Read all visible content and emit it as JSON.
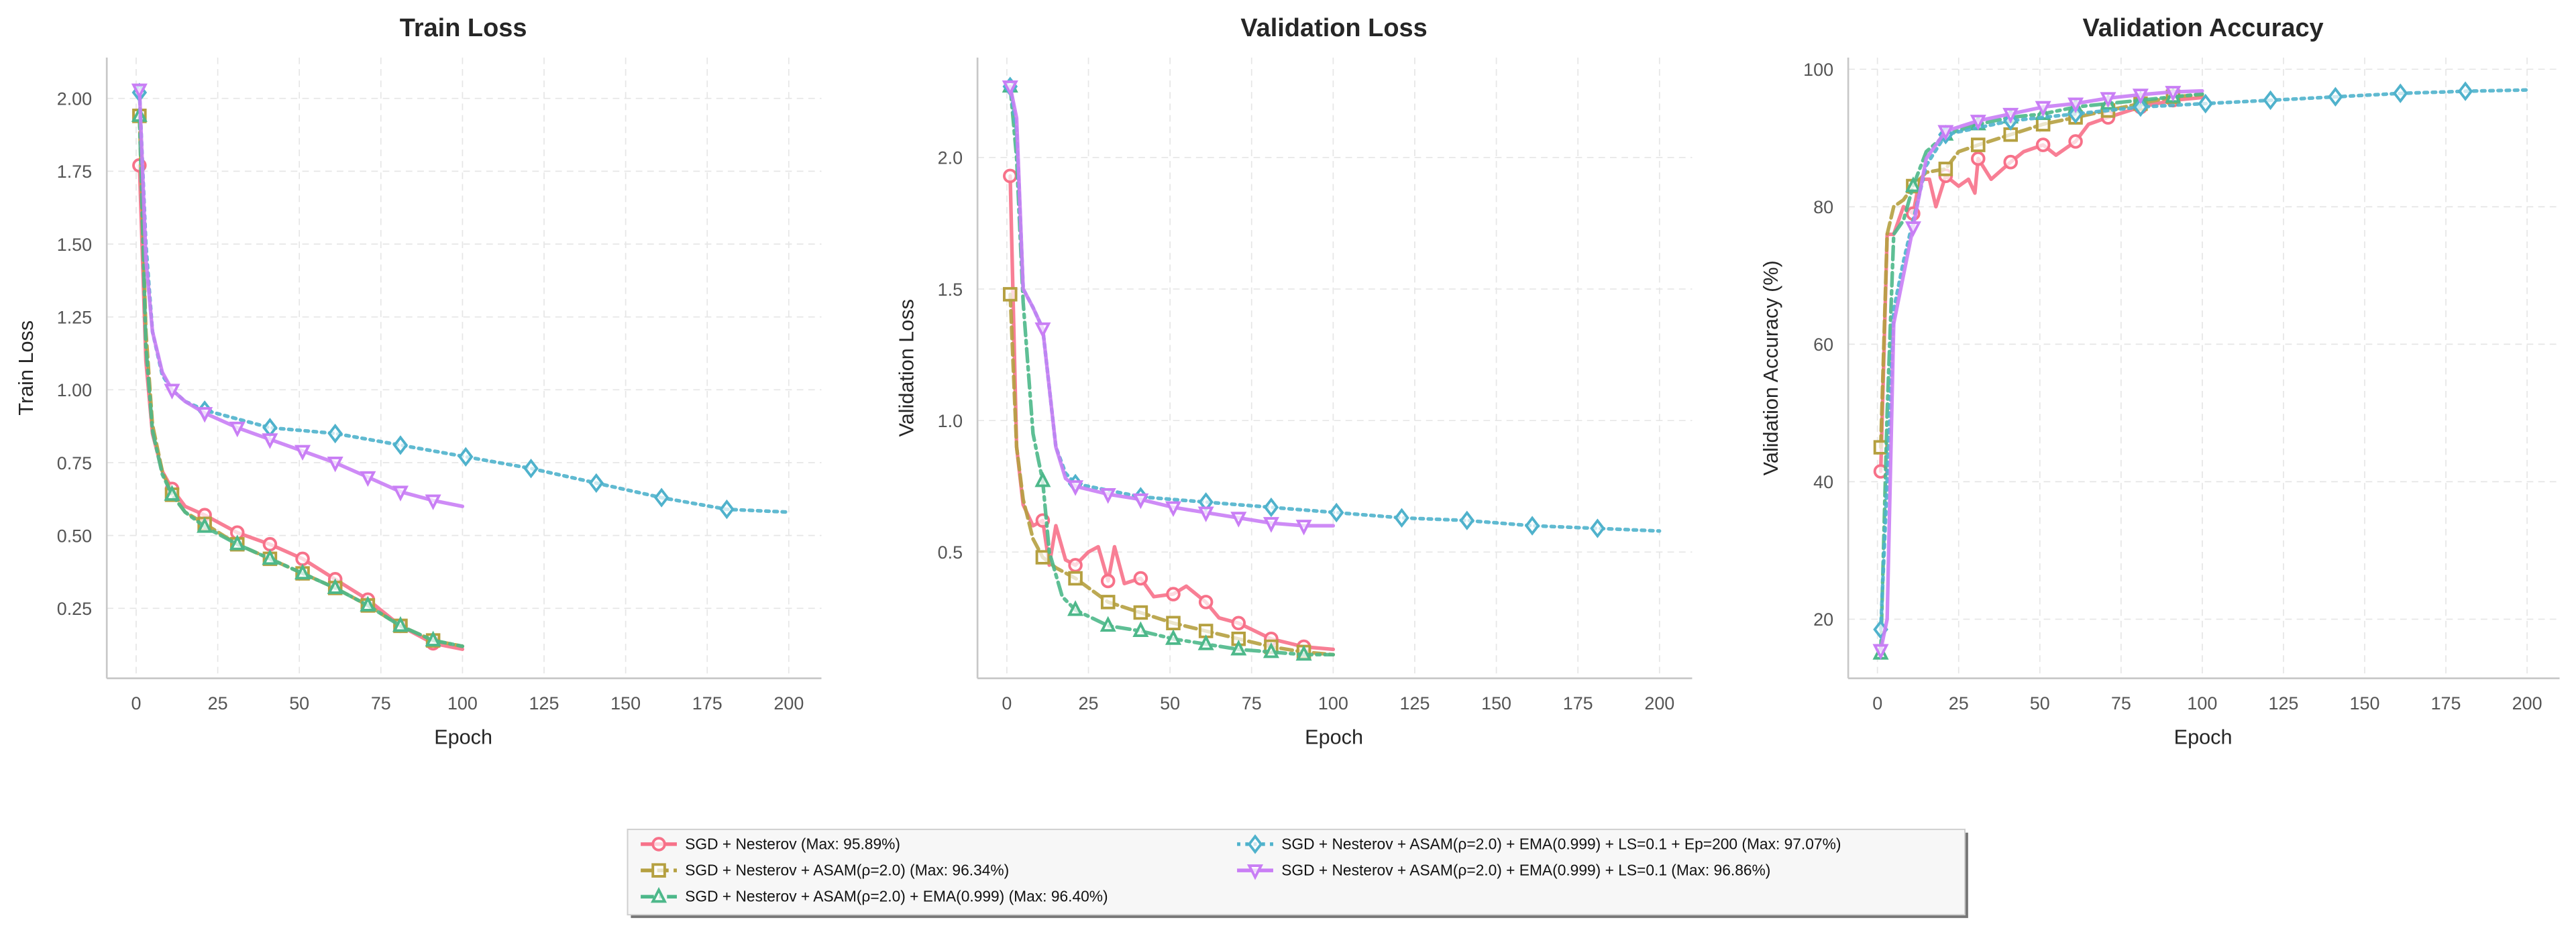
{
  "colors": {
    "sgd": "#f77189",
    "asam": "#b5a040",
    "ema": "#4db88a",
    "ep200": "#4fb2cc",
    "ls": "#c97ef5"
  },
  "legend": {
    "location": "bottom-center",
    "entries": [
      "SGD + Nesterov (Max: 95.89%)",
      "SGD + Nesterov + ASAM(ρ=2.0) (Max: 96.34%)",
      "SGD + Nesterov + ASAM(ρ=2.0) + EMA(0.999) (Max: 96.40%)",
      "SGD + Nesterov + ASAM(ρ=2.0) + EMA(0.999) + LS=0.1 + Ep=200 (Max: 97.07%)",
      "SGD + Nesterov + ASAM(ρ=2.0) + EMA(0.999) + LS=0.1 (Max: 96.86%)"
    ]
  },
  "chart_data": [
    {
      "type": "line",
      "title": "Train Loss",
      "xlabel": "Epoch",
      "ylabel": "Train Loss",
      "xlim": [
        -9,
        210
      ],
      "ylim": [
        0.01,
        2.14
      ],
      "grid": true,
      "xticks": [
        0,
        25,
        50,
        75,
        100,
        125,
        150,
        175,
        200
      ],
      "yticks": [
        0.25,
        0.5,
        0.75,
        1.0,
        1.25,
        1.5,
        1.75,
        2.0
      ],
      "ytick_labels": [
        "0.25",
        "0.50",
        "0.75",
        "1.00",
        "1.25",
        "1.50",
        "1.75",
        "2.00"
      ],
      "series": [
        {
          "name": "SGD + Nesterov (Max: 95.89%)",
          "key": "sgd",
          "style": "solid",
          "marker": "circle",
          "x": [
            1,
            3,
            5,
            8,
            11,
            15,
            21,
            31,
            41,
            51,
            61,
            71,
            81,
            91,
            100
          ],
          "y": [
            1.77,
            1.1,
            0.85,
            0.72,
            0.66,
            0.6,
            0.57,
            0.51,
            0.47,
            0.42,
            0.35,
            0.28,
            0.19,
            0.13,
            0.11
          ]
        },
        {
          "name": "SGD + Nesterov + ASAM(ρ=2.0) (Max: 96.34%)",
          "key": "asam",
          "style": "dashed",
          "marker": "square",
          "x": [
            1,
            3,
            5,
            8,
            11,
            15,
            21,
            31,
            41,
            51,
            61,
            71,
            81,
            91,
            100
          ],
          "y": [
            1.94,
            1.2,
            0.88,
            0.72,
            0.64,
            0.58,
            0.54,
            0.47,
            0.42,
            0.37,
            0.32,
            0.26,
            0.19,
            0.14,
            0.12
          ]
        },
        {
          "name": "SGD + Nesterov + ASAM(ρ=2.0) + EMA(0.999) (Max: 96.40%)",
          "key": "ema",
          "style": "dashdot",
          "marker": "triangle-up",
          "x": [
            1,
            3,
            5,
            8,
            11,
            15,
            21,
            31,
            41,
            51,
            61,
            71,
            81,
            91,
            100
          ],
          "y": [
            1.94,
            1.15,
            0.86,
            0.71,
            0.64,
            0.58,
            0.53,
            0.47,
            0.42,
            0.37,
            0.32,
            0.26,
            0.19,
            0.14,
            0.12
          ]
        },
        {
          "name": "SGD + Nesterov + ASAM(ρ=2.0) + EMA(0.999) + LS=0.1 + Ep=200 (Max: 97.07%)",
          "key": "ep200",
          "style": "dotted",
          "marker": "diamond",
          "x": [
            1,
            3,
            5,
            8,
            11,
            15,
            21,
            41,
            61,
            81,
            101,
            121,
            141,
            161,
            181,
            200
          ],
          "y": [
            2.02,
            1.5,
            1.2,
            1.05,
            1.0,
            0.96,
            0.93,
            0.87,
            0.85,
            0.81,
            0.77,
            0.73,
            0.68,
            0.63,
            0.59,
            0.58
          ]
        },
        {
          "name": "SGD + Nesterov + ASAM(ρ=2.0) + EMA(0.999) + LS=0.1 (Max: 96.86%)",
          "key": "ls",
          "style": "solid",
          "marker": "triangle-down",
          "x": [
            1,
            3,
            5,
            8,
            11,
            15,
            21,
            31,
            41,
            51,
            61,
            71,
            81,
            91,
            100
          ],
          "y": [
            2.03,
            1.45,
            1.2,
            1.06,
            1.0,
            0.96,
            0.92,
            0.87,
            0.83,
            0.79,
            0.75,
            0.7,
            0.65,
            0.62,
            0.6
          ]
        }
      ]
    },
    {
      "type": "line",
      "title": "Validation Loss",
      "xlabel": "Epoch",
      "ylabel": "Validation Loss",
      "xlim": [
        -9,
        210
      ],
      "ylim": [
        0.02,
        2.38
      ],
      "grid": true,
      "xticks": [
        0,
        25,
        50,
        75,
        100,
        125,
        150,
        175,
        200
      ],
      "yticks": [
        0.5,
        1.0,
        1.5,
        2.0
      ],
      "ytick_labels": [
        "0.5",
        "1.0",
        "1.5",
        "2.0"
      ],
      "series": [
        {
          "name": "SGD + Nesterov (Max: 95.89%)",
          "key": "sgd",
          "style": "solid",
          "marker": "circle",
          "x": [
            1,
            3,
            5,
            8,
            11,
            13,
            15,
            18,
            21,
            25,
            28,
            31,
            33,
            36,
            41,
            45,
            51,
            55,
            61,
            65,
            71,
            81,
            91,
            100
          ],
          "y": [
            1.93,
            0.9,
            0.68,
            0.6,
            0.62,
            0.45,
            0.6,
            0.47,
            0.45,
            0.5,
            0.52,
            0.39,
            0.52,
            0.38,
            0.4,
            0.33,
            0.34,
            0.37,
            0.31,
            0.25,
            0.23,
            0.17,
            0.14,
            0.13
          ]
        },
        {
          "name": "SGD + Nesterov + ASAM(ρ=2.0) (Max: 96.34%)",
          "key": "asam",
          "style": "dashed",
          "marker": "square",
          "x": [
            1,
            3,
            5,
            8,
            11,
            15,
            21,
            31,
            41,
            51,
            61,
            71,
            81,
            91,
            100
          ],
          "y": [
            1.48,
            0.9,
            0.7,
            0.55,
            0.48,
            0.44,
            0.4,
            0.31,
            0.27,
            0.23,
            0.2,
            0.17,
            0.14,
            0.12,
            0.11
          ]
        },
        {
          "name": "SGD + Nesterov + ASAM(ρ=2.0) + EMA(0.999) (Max: 96.40%)",
          "key": "ema",
          "style": "dashdot",
          "marker": "triangle-up",
          "x": [
            1,
            3,
            5,
            8,
            11,
            13,
            17,
            21,
            31,
            41,
            51,
            61,
            71,
            81,
            91,
            100
          ],
          "y": [
            2.27,
            2.0,
            1.45,
            0.95,
            0.77,
            0.5,
            0.33,
            0.28,
            0.22,
            0.2,
            0.17,
            0.15,
            0.13,
            0.12,
            0.11,
            0.11
          ]
        },
        {
          "name": "SGD + Nesterov + ASAM(ρ=2.0) + EMA(0.999) + LS=0.1 + Ep=200 (Max: 97.07%)",
          "key": "ep200",
          "style": "dotted",
          "marker": "diamond",
          "x": [
            1,
            3,
            5,
            8,
            11,
            15,
            18,
            21,
            41,
            61,
            81,
            101,
            121,
            141,
            161,
            181,
            200
          ],
          "y": [
            2.27,
            2.1,
            1.5,
            1.43,
            1.35,
            0.9,
            0.8,
            0.76,
            0.71,
            0.69,
            0.67,
            0.65,
            0.63,
            0.62,
            0.6,
            0.59,
            0.58
          ]
        },
        {
          "name": "SGD + Nesterov + ASAM(ρ=2.0) + EMA(0.999) + LS=0.1 (Max: 96.86%)",
          "key": "ls",
          "style": "solid",
          "marker": "triangle-down",
          "x": [
            1,
            3,
            5,
            8,
            11,
            15,
            18,
            21,
            31,
            41,
            51,
            61,
            71,
            81,
            91,
            100
          ],
          "y": [
            2.27,
            2.15,
            1.5,
            1.43,
            1.35,
            0.9,
            0.78,
            0.75,
            0.72,
            0.7,
            0.67,
            0.65,
            0.63,
            0.61,
            0.6,
            0.6
          ]
        }
      ]
    },
    {
      "type": "line",
      "title": "Validation Accuracy",
      "xlabel": "Epoch",
      "ylabel": "Validation Accuracy (%)",
      "xlim": [
        -9,
        210
      ],
      "ylim": [
        11.4,
        101.7
      ],
      "grid": true,
      "xticks": [
        0,
        25,
        50,
        75,
        100,
        125,
        150,
        175,
        200
      ],
      "yticks": [
        20,
        40,
        60,
        80,
        100
      ],
      "ytick_labels": [
        "20",
        "40",
        "60",
        "80",
        "100"
      ],
      "series": [
        {
          "name": "SGD + Nesterov (Max: 95.89%)",
          "key": "sgd",
          "style": "solid",
          "marker": "circle",
          "x": [
            1,
            3,
            5,
            8,
            11,
            13,
            16,
            18,
            21,
            25,
            28,
            30,
            31,
            35,
            41,
            45,
            51,
            55,
            61,
            65,
            71,
            81,
            91,
            100
          ],
          "y": [
            41.5,
            76,
            76,
            80,
            79,
            84,
            84,
            80,
            84.5,
            83,
            84,
            82,
            87,
            84,
            86.5,
            88,
            89,
            87.5,
            89.5,
            92,
            93,
            94.5,
            95.5,
            95.9
          ]
        },
        {
          "name": "SGD + Nesterov + ASAM(ρ=2.0) (Max: 96.34%)",
          "key": "asam",
          "style": "dashed",
          "marker": "square",
          "x": [
            1,
            3,
            5,
            8,
            11,
            15,
            21,
            25,
            31,
            41,
            51,
            61,
            71,
            81,
            91,
            100
          ],
          "y": [
            45,
            76,
            80,
            81,
            83,
            85,
            85.5,
            88,
            89,
            90.5,
            92,
            93,
            94,
            95,
            96,
            96.3
          ]
        },
        {
          "name": "SGD + Nesterov + ASAM(ρ=2.0) + EMA(0.999) (Max: 96.40%)",
          "key": "ema",
          "style": "dashdot",
          "marker": "triangle-up",
          "x": [
            1,
            3,
            5,
            8,
            11,
            15,
            21,
            31,
            41,
            51,
            61,
            71,
            81,
            91,
            100
          ],
          "y": [
            15,
            50,
            76,
            78,
            83,
            88,
            90.5,
            92,
            93,
            93.5,
            94.5,
            95,
            95.5,
            96,
            96.4
          ]
        },
        {
          "name": "SGD + Nesterov + ASAM(ρ=2.0) + EMA(0.999) + LS=0.1 + Ep=200 (Max: 97.07%)",
          "key": "ep200",
          "style": "dotted",
          "marker": "diamond",
          "x": [
            1,
            3,
            5,
            8,
            11,
            15,
            21,
            41,
            61,
            81,
            101,
            121,
            141,
            161,
            181,
            200
          ],
          "y": [
            18.5,
            40,
            65,
            72,
            78,
            86,
            90.5,
            92.5,
            93.5,
            94.5,
            95,
            95.5,
            96,
            96.5,
            96.8,
            97
          ]
        },
        {
          "name": "SGD + Nesterov + ASAM(ρ=2.0) + EMA(0.999) + LS=0.1 (Max: 96.86%)",
          "key": "ls",
          "style": "solid",
          "marker": "triangle-down",
          "x": [
            1,
            3,
            5,
            8,
            11,
            15,
            21,
            31,
            41,
            51,
            61,
            71,
            81,
            91,
            100
          ],
          "y": [
            15.5,
            20,
            63,
            70,
            77,
            87,
            91,
            92.5,
            93.5,
            94.5,
            95,
            95.8,
            96.3,
            96.7,
            96.86
          ]
        }
      ]
    }
  ]
}
